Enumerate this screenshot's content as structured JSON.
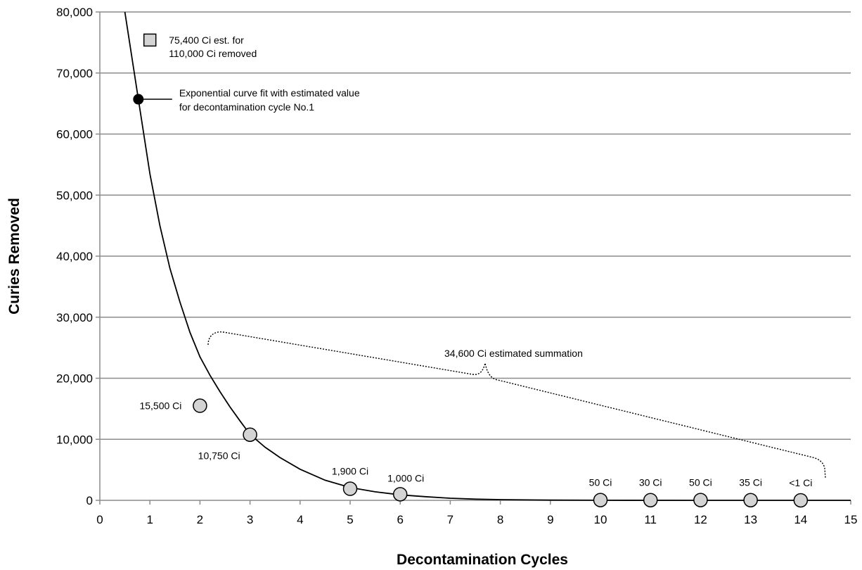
{
  "chart_data": {
    "type": "scatter",
    "xlabel": "Decontamination Cycles",
    "ylabel": "Curies Removed",
    "xlim": [
      0,
      15
    ],
    "ylim": [
      0,
      80000
    ],
    "x_ticks": [
      "0",
      "1",
      "2",
      "3",
      "4",
      "5",
      "6",
      "7",
      "8",
      "9",
      "10",
      "11",
      "12",
      "13",
      "14",
      "15"
    ],
    "y_ticks": [
      "0",
      "10,000",
      "20,000",
      "30,000",
      "40,000",
      "50,000",
      "60,000",
      "70,000",
      "80,000"
    ],
    "grid": "horizontal",
    "series": [
      {
        "marker": "circle-gray",
        "points": [
          {
            "x": 2,
            "y": 15500,
            "label": "15,500 Ci"
          },
          {
            "x": 3,
            "y": 10750,
            "label": "10,750 Ci"
          },
          {
            "x": 5,
            "y": 1900,
            "label": "1,900 Ci"
          },
          {
            "x": 6,
            "y": 1000,
            "label": "1,000 Ci"
          },
          {
            "x": 10,
            "y": 50,
            "label": "50 Ci"
          },
          {
            "x": 11,
            "y": 30,
            "label": "30 Ci"
          },
          {
            "x": 12,
            "y": 50,
            "label": "50 Ci"
          },
          {
            "x": 13,
            "y": 35,
            "label": "35 Ci"
          },
          {
            "x": 14,
            "y": 1,
            "label": "<1 Ci"
          }
        ]
      },
      {
        "marker": "circle-black",
        "points": [
          {
            "x": 0.77,
            "y": 65700
          }
        ]
      },
      {
        "marker": "square-gray",
        "points": [
          {
            "x": 1.0,
            "y": 75400
          }
        ]
      },
      {
        "type": "line",
        "style": "exponential-fit",
        "points": [
          {
            "x": 0.5,
            "y": 80000
          },
          {
            "x": 0.77,
            "y": 65700
          },
          {
            "x": 1.0,
            "y": 53500
          },
          {
            "x": 1.2,
            "y": 45000
          },
          {
            "x": 1.4,
            "y": 38000
          },
          {
            "x": 1.6,
            "y": 32500
          },
          {
            "x": 1.8,
            "y": 27500
          },
          {
            "x": 2.0,
            "y": 23500
          },
          {
            "x": 2.2,
            "y": 20500
          },
          {
            "x": 2.4,
            "y": 17800
          },
          {
            "x": 2.6,
            "y": 15300
          },
          {
            "x": 2.8,
            "y": 13000
          },
          {
            "x": 3.0,
            "y": 10800
          },
          {
            "x": 3.3,
            "y": 8700
          },
          {
            "x": 3.6,
            "y": 7000
          },
          {
            "x": 4.0,
            "y": 5100
          },
          {
            "x": 4.5,
            "y": 3300
          },
          {
            "x": 5.0,
            "y": 2100
          },
          {
            "x": 5.5,
            "y": 1400
          },
          {
            "x": 6.0,
            "y": 900
          },
          {
            "x": 6.5,
            "y": 600
          },
          {
            "x": 7.0,
            "y": 350
          },
          {
            "x": 7.5,
            "y": 200
          },
          {
            "x": 8.0,
            "y": 120
          },
          {
            "x": 9.0,
            "y": 40
          },
          {
            "x": 10.0,
            "y": 15
          },
          {
            "x": 12.0,
            "y": 2
          },
          {
            "x": 15.0,
            "y": 0
          }
        ]
      }
    ],
    "annotations": {
      "square_label_line1": "75,400 Ci est. for",
      "square_label_line2": "110,000 Ci removed",
      "fit_label_line1": "Exponential curve fit with estimated value",
      "fit_label_line2": "for decontamination cycle No.1",
      "summation_label": "34,600 Ci estimated summation"
    }
  }
}
